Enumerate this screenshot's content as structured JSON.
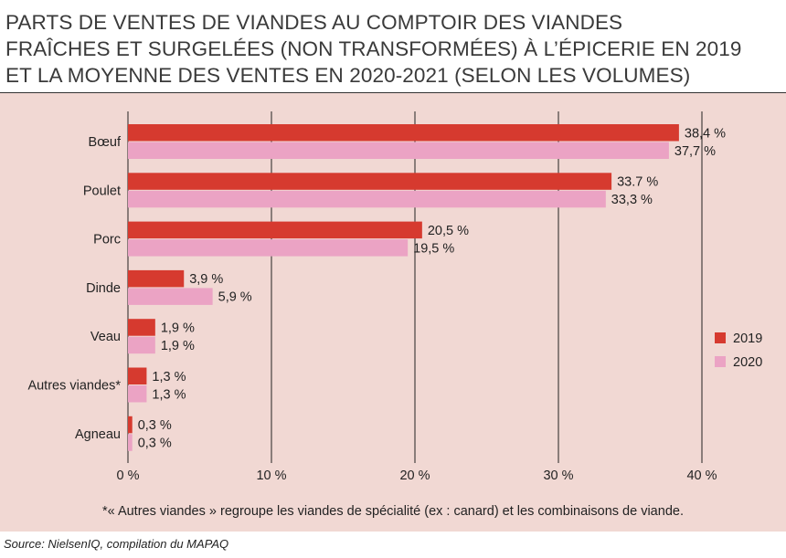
{
  "title_lines": [
    "PARTS DE VENTES DE VIANDES AU COMPTOIR DES VIANDES",
    "FRAÎCHES ET SURGELÉES (NON TRANSFORMÉES) À L’ÉPICERIE EN 2019",
    "ET LA MOYENNE DES VENTES EN 2020-2021 (SELON LES VOLUMES)"
  ],
  "footnote": "*« Autres viandes » regroupe les viandes de spécialité (ex : canard) et les combinaisons de viande.",
  "source": "Source: NielsenIQ, compilation du MAPAQ",
  "colors": {
    "s2019": "#d63a2f",
    "s2020": "#eba3c4",
    "grid": "#222222",
    "panel": "#f1d8d3"
  },
  "chart_data": {
    "type": "bar",
    "orientation": "horizontal",
    "title": "PARTS DE VENTES DE VIANDES AU COMPTOIR DES VIANDES FRAÎCHES ET SURGELÉES (NON TRANSFORMÉES) À L’ÉPICERIE EN 2019 ET LA MOYENNE DES VENTES EN 2020-2021 (SELON LES VOLUMES)",
    "categories": [
      "Bœuf",
      "Poulet",
      "Porc",
      "Dinde",
      "Veau",
      "Autres viandes*",
      "Agneau"
    ],
    "series": [
      {
        "name": "2019",
        "values": [
          38.4,
          33.7,
          20.5,
          3.9,
          1.9,
          1.3,
          0.3
        ],
        "labels": [
          "38,4 %",
          "33.7 %",
          "20,5 %",
          "3,9 %",
          "1,9 %",
          "1,3 %",
          "0,3 %"
        ]
      },
      {
        "name": "2020",
        "values": [
          37.7,
          33.3,
          19.5,
          5.9,
          1.9,
          1.3,
          0.3
        ],
        "labels": [
          "37,7 %",
          "33,3 %",
          "19,5 %",
          "5,9 %",
          "1,9 %",
          "1,3 %",
          "0,3 %"
        ]
      }
    ],
    "xlim": [
      0,
      40
    ],
    "xticks": [
      0,
      10,
      20,
      30,
      40
    ],
    "xtick_labels": [
      "0 %",
      "10 %",
      "20 %",
      "30 %",
      "40 %"
    ],
    "legend": [
      "2019",
      "2020"
    ],
    "legend_position": "right",
    "grid": true
  }
}
